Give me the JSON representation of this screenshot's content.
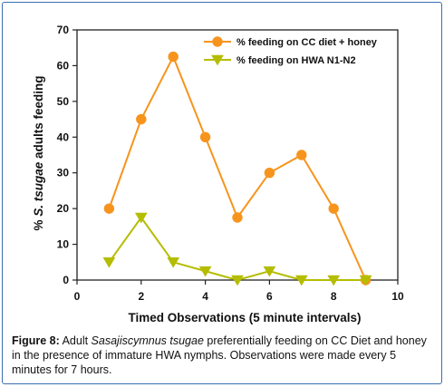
{
  "chart_data": {
    "type": "line",
    "xlabel": "Timed Observations (5 minute intervals)",
    "ylabel_parts": [
      "% ",
      "S. tsugae",
      " adults feeding"
    ],
    "xlim": [
      0,
      10
    ],
    "ylim": [
      0,
      70
    ],
    "x_ticks": [
      "0",
      "2",
      "4",
      "6",
      "8",
      "10"
    ],
    "y_ticks": [
      "0",
      "10",
      "20",
      "30",
      "40",
      "50",
      "60",
      "70"
    ],
    "grid": false,
    "legend_position": "top-right",
    "series": [
      {
        "name": "% feeding on CC diet + honey",
        "color": "#f7941d",
        "marker": "circle",
        "x": [
          1,
          2,
          3,
          4,
          5,
          6,
          7,
          8,
          9
        ],
        "values": [
          20,
          45,
          62.5,
          40,
          17.5,
          30,
          35,
          20,
          0
        ]
      },
      {
        "name": "% feeding on HWA N1-N2",
        "color": "#b5bd00",
        "marker": "triangle-down",
        "x": [
          1,
          2,
          3,
          4,
          5,
          6,
          7,
          8,
          9
        ],
        "values": [
          5,
          17.5,
          5,
          2.5,
          0,
          2.5,
          0,
          0,
          0
        ]
      }
    ]
  },
  "caption": {
    "label": "Figure 8:",
    "text_1": " Adult ",
    "species": "Sasajiscymnus tsugae",
    "text_2": " preferentially feeding on CC Diet and honey in the presence of immature HWA nymphs. Observations were made every 5 minutes for 7 hours."
  }
}
